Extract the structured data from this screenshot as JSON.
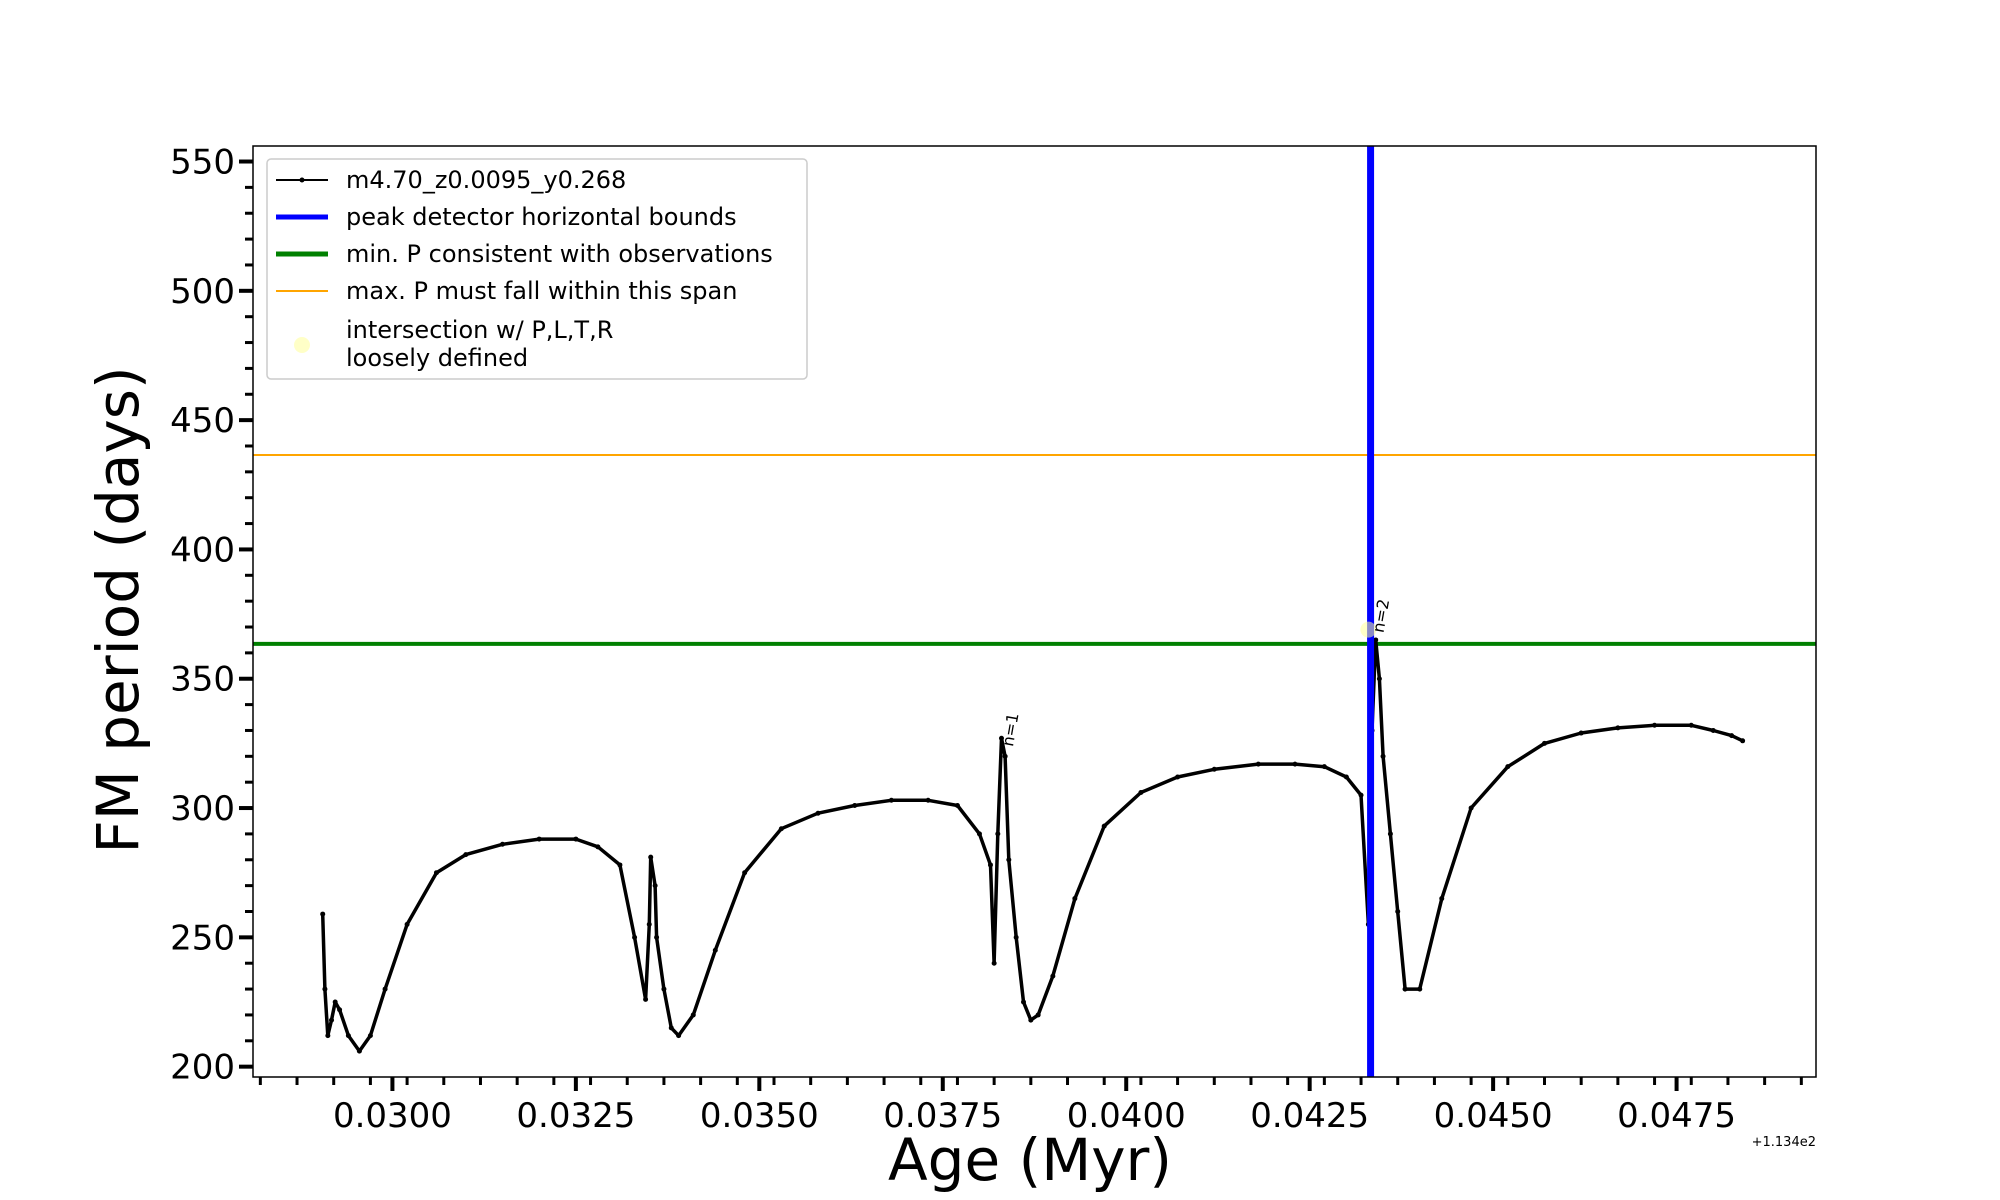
{
  "chart_data": {
    "type": "line",
    "xlabel": "Age (Myr)",
    "ylabel": "FM period (days)",
    "x_offset_label": "+1.134e2",
    "xlim": [
      0.0281,
      0.0494
    ],
    "ylim": [
      196,
      556
    ],
    "x_ticks": [
      {
        "value": 0.03,
        "label": "0.0300"
      },
      {
        "value": 0.0325,
        "label": "0.0325"
      },
      {
        "value": 0.035,
        "label": "0.0350"
      },
      {
        "value": 0.0375,
        "label": "0.0375"
      },
      {
        "value": 0.04,
        "label": "0.0400"
      },
      {
        "value": 0.0425,
        "label": "0.0425"
      },
      {
        "value": 0.045,
        "label": "0.0450"
      },
      {
        "value": 0.0475,
        "label": "0.0475"
      }
    ],
    "y_ticks": [
      {
        "value": 200,
        "label": "200"
      },
      {
        "value": 250,
        "label": "250"
      },
      {
        "value": 300,
        "label": "300"
      },
      {
        "value": 350,
        "label": "350"
      },
      {
        "value": 400,
        "label": "400"
      },
      {
        "value": 450,
        "label": "450"
      },
      {
        "value": 500,
        "label": "500"
      },
      {
        "value": 550,
        "label": "550"
      }
    ],
    "series": [
      {
        "name": "m4.70_z0.0095_y0.268",
        "color": "#000000",
        "style": "line-with-dot-markers",
        "x": [
          0.02905,
          0.02908,
          0.02912,
          0.02917,
          0.02922,
          0.02928,
          0.0294,
          0.02955,
          0.0297,
          0.0299,
          0.0302,
          0.0306,
          0.031,
          0.0315,
          0.032,
          0.0325,
          0.0328,
          0.0331,
          0.0333,
          0.03345,
          0.0335,
          0.03352,
          0.03358,
          0.0336,
          0.0337,
          0.0338,
          0.0339,
          0.0341,
          0.0344,
          0.0348,
          0.0353,
          0.0358,
          0.0363,
          0.0368,
          0.0373,
          0.0377,
          0.038,
          0.03815,
          0.0382,
          0.03825,
          0.0383,
          0.03835,
          0.0384,
          0.0385,
          0.0386,
          0.0387,
          0.0388,
          0.039,
          0.0393,
          0.0397,
          0.0402,
          0.0407,
          0.0412,
          0.0418,
          0.0423,
          0.0427,
          0.043,
          0.0432,
          0.0433,
          0.04335,
          0.0434,
          0.04345,
          0.0435,
          0.0436,
          0.0437,
          0.0438,
          0.044,
          0.0443,
          0.0447,
          0.0452,
          0.0457,
          0.0462,
          0.0467,
          0.0472,
          0.0477,
          0.048,
          0.04825,
          0.0484
        ],
        "y": [
          259,
          230,
          212,
          218,
          225,
          222,
          212,
          206,
          212,
          230,
          255,
          275,
          282,
          286,
          288,
          288,
          285,
          278,
          250,
          226,
          255,
          281,
          270,
          250,
          230,
          215,
          212,
          220,
          245,
          275,
          292,
          298,
          301,
          303,
          303,
          301,
          290,
          278,
          240,
          290,
          327,
          320,
          280,
          250,
          225,
          218,
          220,
          235,
          265,
          293,
          306,
          312,
          315,
          317,
          317,
          316,
          312,
          305,
          255,
          330,
          365,
          350,
          320,
          290,
          260,
          230,
          230,
          265,
          300,
          316,
          325,
          329,
          331,
          332,
          332,
          330,
          328,
          326
        ]
      },
      {
        "name": "peak detector horizontal bounds",
        "type": "vline",
        "color": "#0000ff",
        "x": 0.04333
      },
      {
        "name": "min. P consistent with observations",
        "type": "hline",
        "color": "#008000",
        "y": 363.5
      },
      {
        "name": "max. P must fall within this span",
        "type": "hline",
        "color": "#ffa500",
        "y": 436.5
      },
      {
        "name": "intersection w/ P,L,T,R\nloosely defined",
        "type": "scatter",
        "color": "#ffff99",
        "points": [
          {
            "x": 0.0433,
            "y": 369
          }
        ]
      }
    ],
    "annotations": [
      {
        "text": "n=1",
        "x": 0.0384,
        "y": 322
      },
      {
        "text": "n=2",
        "x": 0.04345,
        "y": 366
      }
    ],
    "legend_position": "top-left"
  }
}
